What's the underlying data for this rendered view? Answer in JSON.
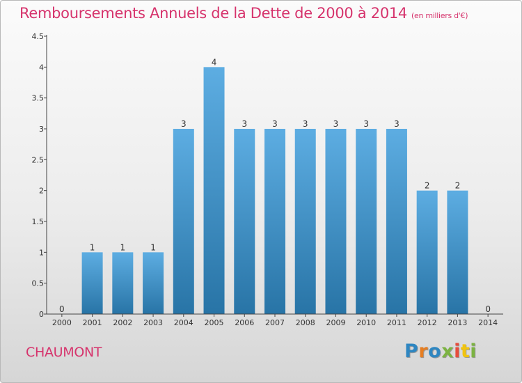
{
  "header": {
    "title": "Remboursements Annuels de la Dette de 2000 à 2014",
    "unit": "(en milliers d'€)"
  },
  "footer": {
    "commune": "CHAUMONT",
    "brand_letters": [
      {
        "ch": "P",
        "color": "#2e86c1"
      },
      {
        "ch": "r",
        "color": "#e67e22"
      },
      {
        "ch": "o",
        "color": "#2e86c1"
      },
      {
        "ch": "x",
        "color": "#7cb342"
      },
      {
        "ch": "i",
        "color": "#e74c3c"
      },
      {
        "ch": "t",
        "color": "#f1c40f"
      },
      {
        "ch": "i",
        "color": "#7cb342"
      }
    ]
  },
  "colors": {
    "accent": "#d6336c",
    "bar_top": "#5dade2",
    "bar_bottom": "#2874a6"
  },
  "chart_data": {
    "type": "bar",
    "title": "Remboursements Annuels de la Dette de 2000 à 2014",
    "xlabel": "",
    "ylabel": "",
    "categories": [
      "2000",
      "2001",
      "2002",
      "2003",
      "2004",
      "2005",
      "2006",
      "2007",
      "2008",
      "2009",
      "2010",
      "2011",
      "2012",
      "2013",
      "2014"
    ],
    "values": [
      0,
      1,
      1,
      1,
      3,
      4,
      3,
      3,
      3,
      3,
      3,
      3,
      2,
      2,
      0
    ],
    "value_labels": [
      "0",
      "1",
      "1",
      "1",
      "3",
      "4",
      "3",
      "3",
      "3",
      "3",
      "3",
      "3",
      "2",
      "2",
      "0"
    ],
    "ylim": [
      0,
      4.5
    ],
    "yticks": [
      {
        "v": 0,
        "label": "0"
      },
      {
        "v": 0.5,
        "label": "0.5"
      },
      {
        "v": 1,
        "label": "1"
      },
      {
        "v": 1.5,
        "label": "1.5"
      },
      {
        "v": 2,
        "label": "2"
      },
      {
        "v": 2.5,
        "label": "2.5"
      },
      {
        "v": 3,
        "label": "3"
      },
      {
        "v": 3.5,
        "label": "3.5"
      },
      {
        "v": 4,
        "label": "4"
      },
      {
        "v": 4.5,
        "label": "4.5"
      }
    ],
    "grid": false,
    "legend": "none"
  }
}
